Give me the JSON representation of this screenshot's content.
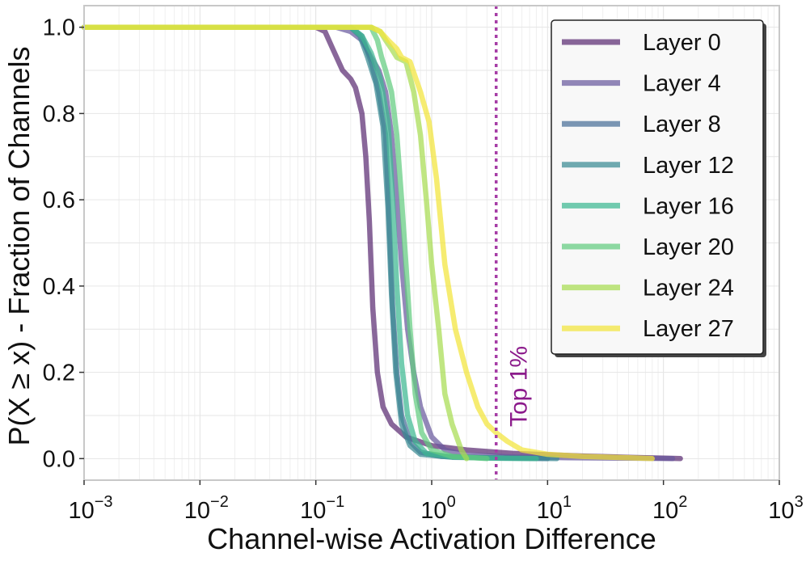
{
  "chart_data": {
    "type": "line",
    "xscale": "log",
    "xlim_exp": [
      -3,
      3
    ],
    "ylim": [
      -0.05,
      1.05
    ],
    "xlabel": "Channel-wise Activation Difference",
    "ylabel": "P(X ≥ x) - Fraction of Channels",
    "x_ticks": [
      {
        "base": "10",
        "exp": "−3"
      },
      {
        "base": "10",
        "exp": "−2"
      },
      {
        "base": "10",
        "exp": "−1"
      },
      {
        "base": "10",
        "exp": "0"
      },
      {
        "base": "10",
        "exp": "1"
      },
      {
        "base": "10",
        "exp": "2"
      },
      {
        "base": "10",
        "exp": "3"
      }
    ],
    "y_ticks": [
      {
        "value": 0.0,
        "label": "0.0"
      },
      {
        "value": 0.2,
        "label": "0.2"
      },
      {
        "value": 0.4,
        "label": "0.4"
      },
      {
        "value": 0.6,
        "label": "0.6"
      },
      {
        "value": 0.8,
        "label": "0.8"
      },
      {
        "value": 1.0,
        "label": "1.0"
      }
    ],
    "grid": true,
    "legend_position": "top-right",
    "vline": {
      "x": 3.6,
      "label": "Top 1%",
      "color": "#a63da6",
      "text_color": "#8b1a8b"
    },
    "series": [
      {
        "name": "Layer 0",
        "color": "#5c2d73",
        "points": [
          [
            0.001,
            1.0
          ],
          [
            0.1,
            1.0
          ],
          [
            0.12,
            0.99
          ],
          [
            0.14,
            0.95
          ],
          [
            0.17,
            0.9
          ],
          [
            0.2,
            0.88
          ],
          [
            0.22,
            0.86
          ],
          [
            0.25,
            0.8
          ],
          [
            0.27,
            0.7
          ],
          [
            0.29,
            0.55
          ],
          [
            0.31,
            0.35
          ],
          [
            0.34,
            0.2
          ],
          [
            0.38,
            0.12
          ],
          [
            0.45,
            0.08
          ],
          [
            0.6,
            0.05
          ],
          [
            1.0,
            0.03
          ],
          [
            2.0,
            0.02
          ],
          [
            5.0,
            0.012
          ],
          [
            20,
            0.006
          ],
          [
            50,
            0.003
          ],
          [
            100,
            0.001
          ],
          [
            140,
            0.0
          ]
        ]
      },
      {
        "name": "Layer 4",
        "color": "#6a5a9e",
        "points": [
          [
            0.001,
            1.0
          ],
          [
            0.15,
            1.0
          ],
          [
            0.2,
            0.99
          ],
          [
            0.25,
            0.97
          ],
          [
            0.3,
            0.93
          ],
          [
            0.35,
            0.9
          ],
          [
            0.4,
            0.85
          ],
          [
            0.45,
            0.75
          ],
          [
            0.5,
            0.6
          ],
          [
            0.55,
            0.45
          ],
          [
            0.62,
            0.3
          ],
          [
            0.7,
            0.2
          ],
          [
            0.8,
            0.12
          ],
          [
            1.0,
            0.05
          ],
          [
            1.3,
            0.02
          ],
          [
            2.0,
            0.008
          ],
          [
            5.0,
            0.004
          ],
          [
            15,
            0.002
          ],
          [
            50,
            0.001
          ],
          [
            120,
            0.0
          ]
        ]
      },
      {
        "name": "Layer 8",
        "color": "#4a6f99",
        "points": [
          [
            0.001,
            1.0
          ],
          [
            0.2,
            1.0
          ],
          [
            0.25,
            0.98
          ],
          [
            0.3,
            0.92
          ],
          [
            0.35,
            0.85
          ],
          [
            0.4,
            0.75
          ],
          [
            0.43,
            0.55
          ],
          [
            0.46,
            0.35
          ],
          [
            0.5,
            0.2
          ],
          [
            0.55,
            0.1
          ],
          [
            0.65,
            0.04
          ],
          [
            0.8,
            0.015
          ],
          [
            1.2,
            0.005
          ],
          [
            3.0,
            0.002
          ],
          [
            10,
            0.0
          ]
        ]
      },
      {
        "name": "Layer 12",
        "color": "#3a8a93",
        "points": [
          [
            0.001,
            1.0
          ],
          [
            0.2,
            1.0
          ],
          [
            0.24,
            0.98
          ],
          [
            0.28,
            0.93
          ],
          [
            0.33,
            0.87
          ],
          [
            0.38,
            0.77
          ],
          [
            0.42,
            0.58
          ],
          [
            0.45,
            0.38
          ],
          [
            0.49,
            0.2
          ],
          [
            0.55,
            0.08
          ],
          [
            0.65,
            0.03
          ],
          [
            0.8,
            0.01
          ],
          [
            1.5,
            0.003
          ],
          [
            5.0,
            0.001
          ],
          [
            12,
            0.0
          ]
        ]
      },
      {
        "name": "Layer 16",
        "color": "#3db892",
        "points": [
          [
            0.001,
            1.0
          ],
          [
            0.2,
            1.0
          ],
          [
            0.25,
            0.98
          ],
          [
            0.3,
            0.94
          ],
          [
            0.36,
            0.88
          ],
          [
            0.42,
            0.78
          ],
          [
            0.46,
            0.6
          ],
          [
            0.5,
            0.4
          ],
          [
            0.55,
            0.22
          ],
          [
            0.62,
            0.1
          ],
          [
            0.72,
            0.04
          ],
          [
            0.9,
            0.012
          ],
          [
            1.5,
            0.004
          ],
          [
            3.0,
            0.001
          ],
          [
            8,
            0.0
          ]
        ]
      },
      {
        "name": "Layer 20",
        "color": "#63cc80",
        "points": [
          [
            0.001,
            1.0
          ],
          [
            0.3,
            1.0
          ],
          [
            0.34,
            0.97
          ],
          [
            0.37,
            0.93
          ],
          [
            0.4,
            0.9
          ],
          [
            0.45,
            0.85
          ],
          [
            0.5,
            0.75
          ],
          [
            0.55,
            0.6
          ],
          [
            0.6,
            0.45
          ],
          [
            0.65,
            0.3
          ],
          [
            0.72,
            0.15
          ],
          [
            0.82,
            0.06
          ],
          [
            1.0,
            0.02
          ],
          [
            1.5,
            0.005
          ],
          [
            3.0,
            0.0
          ]
        ]
      },
      {
        "name": "Layer 24",
        "color": "#a8dc52",
        "points": [
          [
            0.001,
            1.0
          ],
          [
            0.3,
            1.0
          ],
          [
            0.36,
            0.99
          ],
          [
            0.4,
            0.97
          ],
          [
            0.45,
            0.95
          ],
          [
            0.5,
            0.93
          ],
          [
            0.6,
            0.92
          ],
          [
            0.7,
            0.85
          ],
          [
            0.8,
            0.75
          ],
          [
            0.9,
            0.6
          ],
          [
            1.0,
            0.45
          ],
          [
            1.15,
            0.3
          ],
          [
            1.3,
            0.15
          ],
          [
            1.5,
            0.08
          ],
          [
            1.8,
            0.02
          ],
          [
            2.0,
            0.0
          ]
        ]
      },
      {
        "name": "Layer 27",
        "color": "#f3e53a",
        "points": [
          [
            0.001,
            1.0
          ],
          [
            0.3,
            1.0
          ],
          [
            0.36,
            0.99
          ],
          [
            0.42,
            0.97
          ],
          [
            0.5,
            0.95
          ],
          [
            0.55,
            0.93
          ],
          [
            0.65,
            0.92
          ],
          [
            0.8,
            0.85
          ],
          [
            0.95,
            0.78
          ],
          [
            1.1,
            0.65
          ],
          [
            1.3,
            0.45
          ],
          [
            1.6,
            0.3
          ],
          [
            2.0,
            0.2
          ],
          [
            2.5,
            0.12
          ],
          [
            3.0,
            0.08
          ],
          [
            3.6,
            0.06
          ],
          [
            4.5,
            0.04
          ],
          [
            6.0,
            0.02
          ],
          [
            10,
            0.01
          ],
          [
            20,
            0.005
          ],
          [
            50,
            0.002
          ],
          [
            80,
            0.0
          ]
        ]
      }
    ]
  }
}
